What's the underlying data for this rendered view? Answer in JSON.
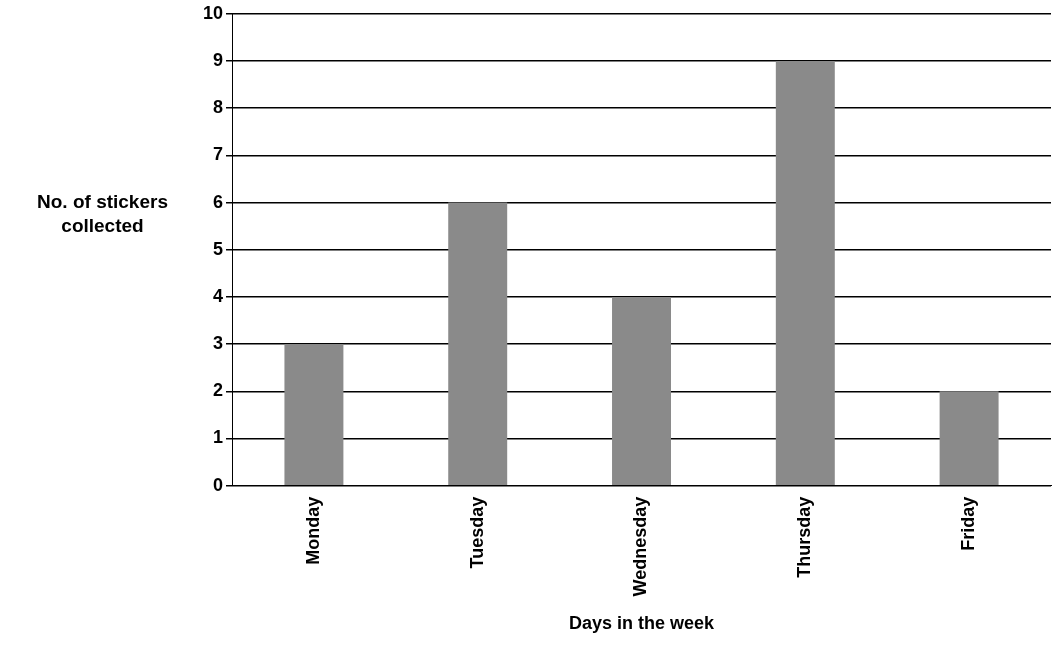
{
  "chart_data": {
    "type": "bar",
    "xlabel": "Days in the week",
    "ylabel": "No. of stickers collected",
    "categories": [
      "Monday",
      "Tuesday",
      "Wednesday",
      "Thursday",
      "Friday"
    ],
    "values": [
      3,
      6,
      4,
      9,
      2
    ],
    "color": "#8a8a8a",
    "ylim": [
      0,
      10
    ],
    "yticks": [
      0,
      1,
      2,
      3,
      4,
      5,
      6,
      7,
      8,
      9,
      10
    ],
    "grid": "y"
  }
}
